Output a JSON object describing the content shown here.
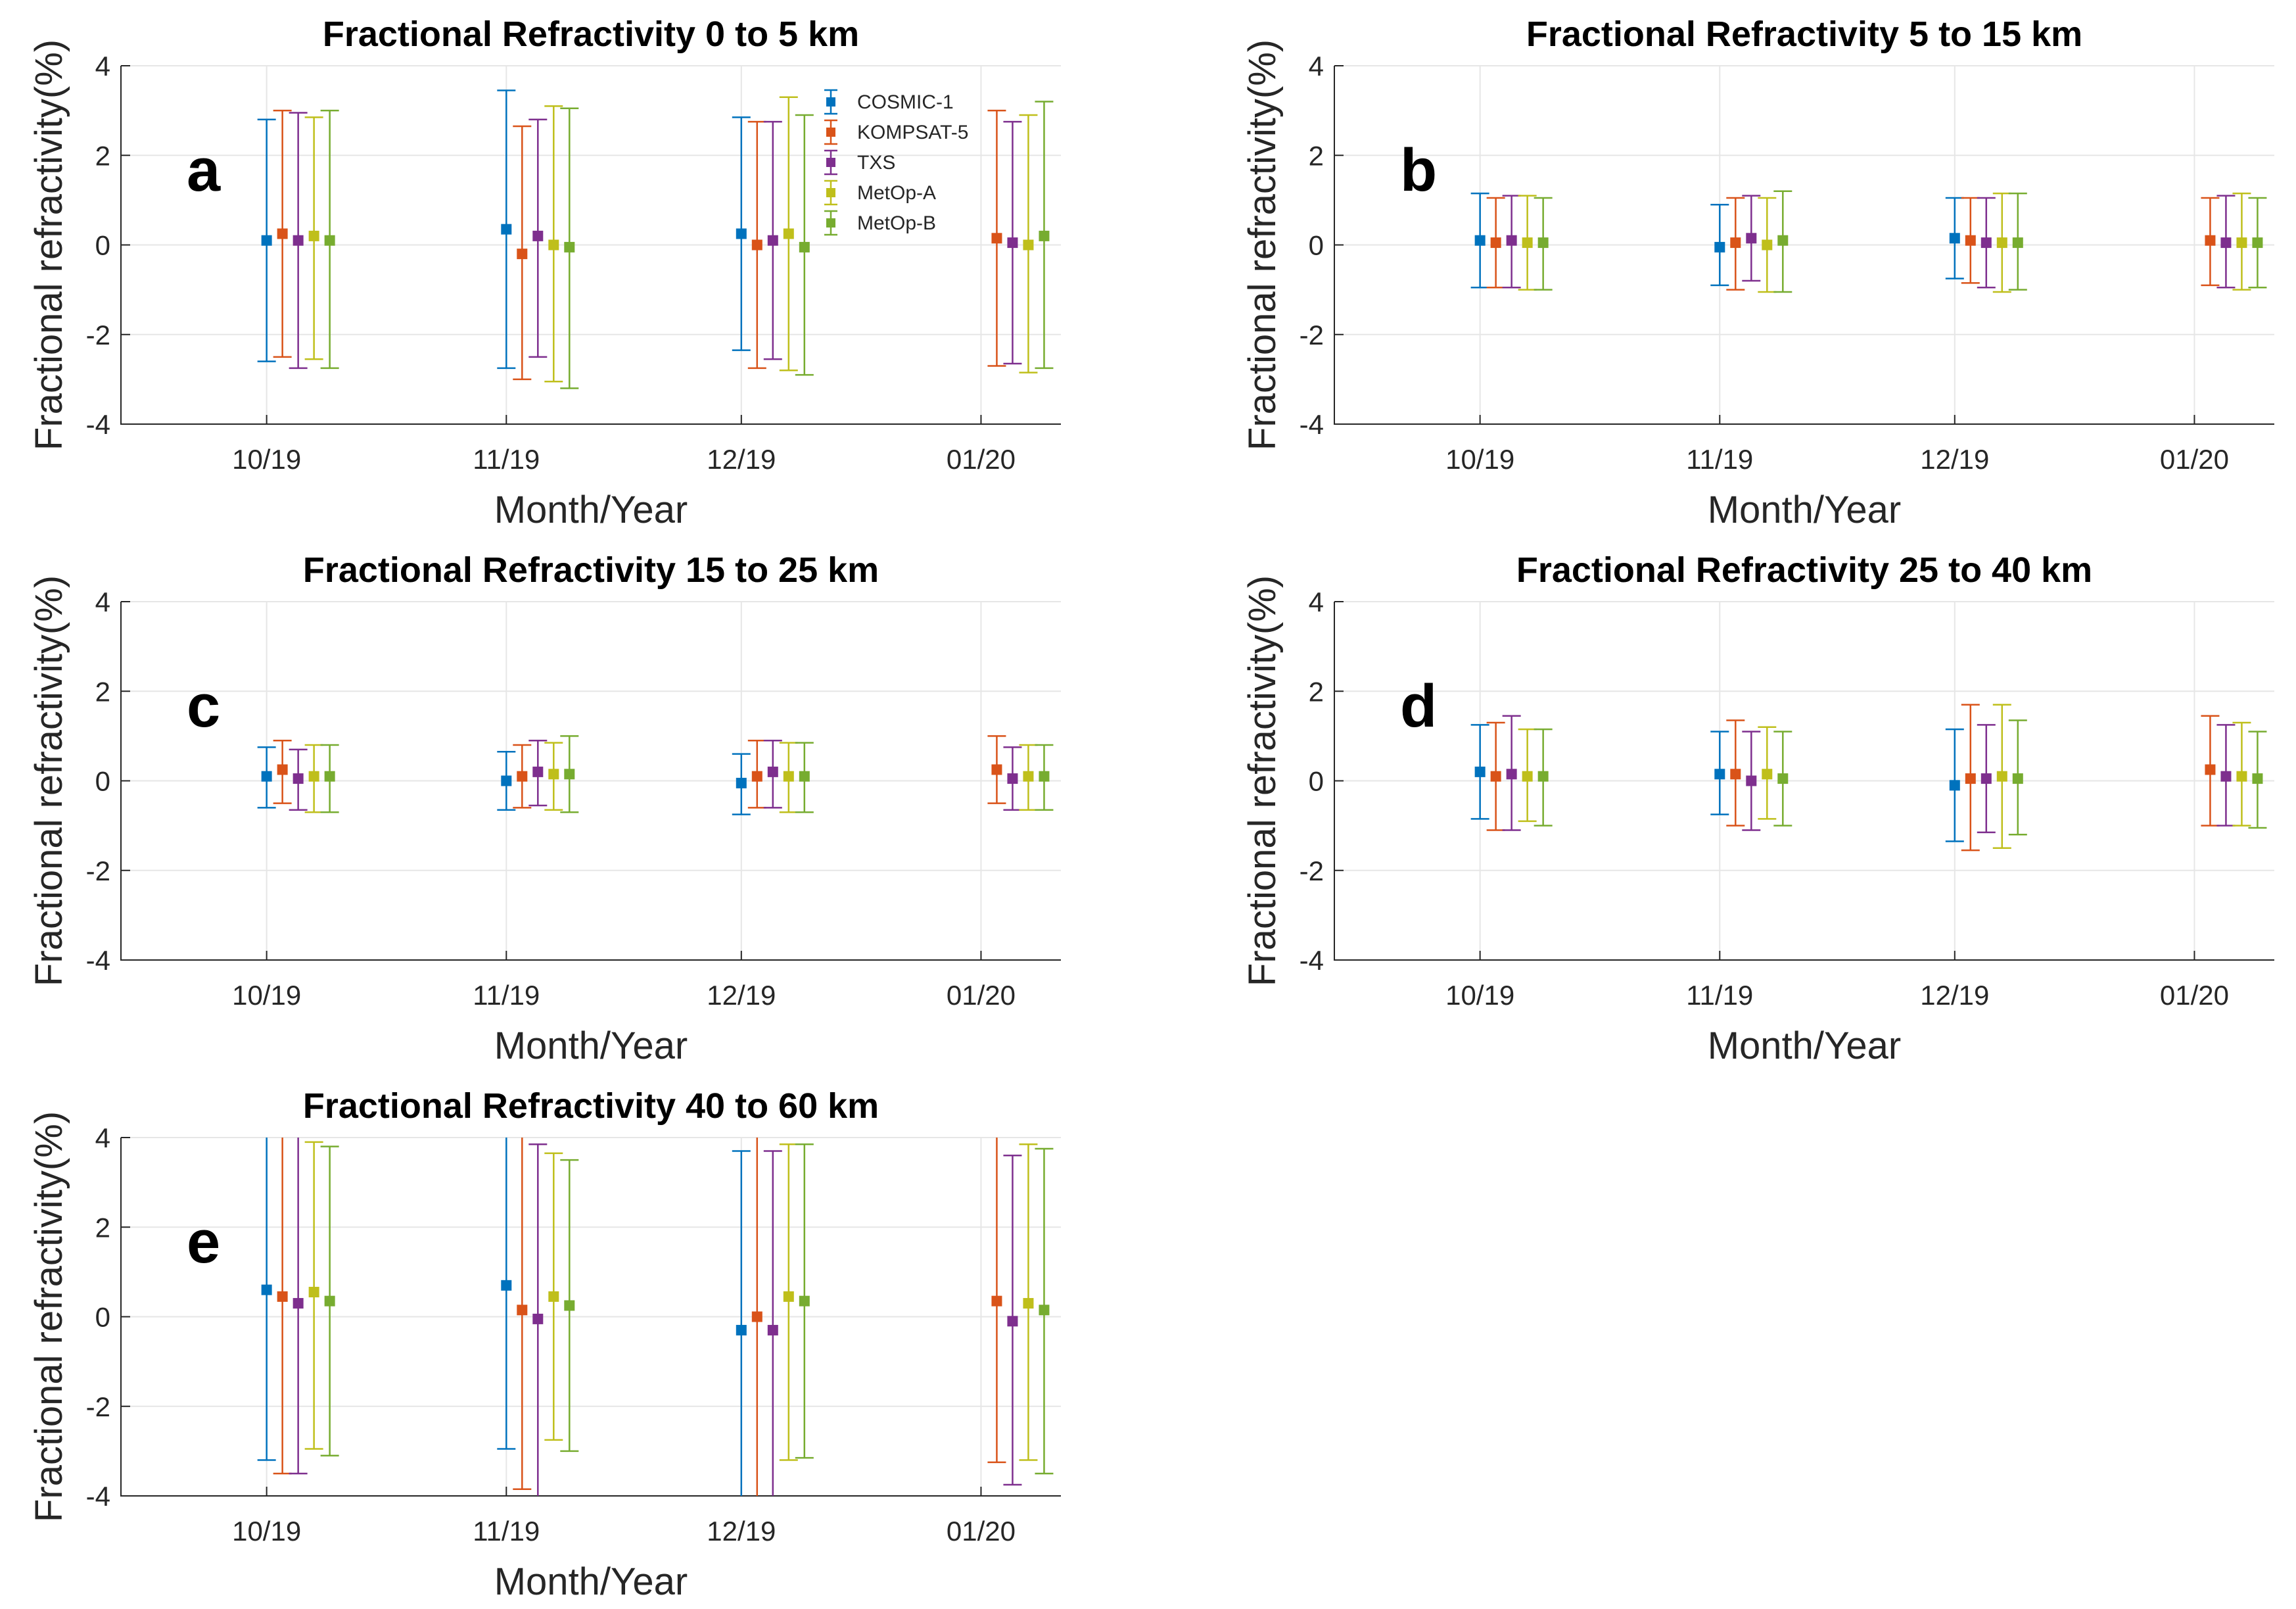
{
  "chart_data": {
    "type": "errorbar",
    "colors": {
      "COSMIC-1": "#0072BD",
      "KOMPSAT-5": "#D95319",
      "TXS": "#7E2F8E",
      "MetOp-A": "#BFBF1B",
      "MetOp-B": "#77AC30"
    },
    "legend": {
      "position": "inside top-right of panel a",
      "entries": [
        "COSMIC-1",
        "KOMPSAT-5",
        "TXS",
        "MetOp-A",
        "MetOp-B"
      ]
    },
    "categories": [
      "10/19",
      "11/19",
      "12/19",
      "01/20"
    ],
    "ylim": [
      -4,
      4
    ],
    "yticks": [
      "4",
      "2",
      "0",
      "-2",
      "-4"
    ],
    "panels": [
      {
        "letter": "a",
        "title": "Fractional Refractivity 0 to 5 km",
        "xlabel": "Month/Year",
        "ylabel": "Fractional refractivity(%)",
        "series": [
          {
            "name": "COSMIC-1",
            "mean": [
              0.1,
              0.35,
              0.25,
              null
            ],
            "low": [
              -2.6,
              -2.75,
              -2.35,
              null
            ],
            "high": [
              2.8,
              3.45,
              2.85,
              null
            ]
          },
          {
            "name": "KOMPSAT-5",
            "mean": [
              0.25,
              -0.2,
              0.0,
              0.15
            ],
            "low": [
              -2.5,
              -3.0,
              -2.75,
              -2.7
            ],
            "high": [
              3.0,
              2.65,
              2.75,
              3.0
            ]
          },
          {
            "name": "TXS",
            "mean": [
              0.1,
              0.2,
              0.1,
              0.05
            ],
            "low": [
              -2.75,
              -2.5,
              -2.55,
              -2.65
            ],
            "high": [
              2.95,
              2.8,
              2.75,
              2.75
            ]
          },
          {
            "name": "MetOp-A",
            "mean": [
              0.2,
              0.0,
              0.25,
              0.0
            ],
            "low": [
              -2.55,
              -3.05,
              -2.8,
              -2.85
            ],
            "high": [
              2.85,
              3.1,
              3.3,
              2.9
            ]
          },
          {
            "name": "MetOp-B",
            "mean": [
              0.1,
              -0.05,
              -0.05,
              0.2
            ],
            "low": [
              -2.75,
              -3.2,
              -2.9,
              -2.75
            ],
            "high": [
              3.0,
              3.05,
              2.9,
              3.2
            ]
          }
        ]
      },
      {
        "letter": "b",
        "title": "Fractional Refractivity 5 to 15 km",
        "xlabel": "Month/Year",
        "ylabel": "Fractional refractivity(%)",
        "series": [
          {
            "name": "COSMIC-1",
            "mean": [
              0.1,
              -0.05,
              0.15,
              null
            ],
            "low": [
              -0.95,
              -0.9,
              -0.75,
              null
            ],
            "high": [
              1.15,
              0.9,
              1.05,
              null
            ]
          },
          {
            "name": "KOMPSAT-5",
            "mean": [
              0.05,
              0.05,
              0.1,
              0.1
            ],
            "low": [
              -0.95,
              -1.0,
              -0.85,
              -0.9
            ],
            "high": [
              1.05,
              1.05,
              1.05,
              1.05
            ]
          },
          {
            "name": "TXS",
            "mean": [
              0.1,
              0.15,
              0.05,
              0.05
            ],
            "low": [
              -0.95,
              -0.8,
              -0.95,
              -0.95
            ],
            "high": [
              1.1,
              1.1,
              1.05,
              1.1
            ]
          },
          {
            "name": "MetOp-A",
            "mean": [
              0.05,
              -0.0,
              0.05,
              0.05
            ],
            "low": [
              -1.0,
              -1.05,
              -1.05,
              -1.0
            ],
            "high": [
              1.1,
              1.05,
              1.15,
              1.15
            ]
          },
          {
            "name": "MetOp-B",
            "mean": [
              0.05,
              0.1,
              0.05,
              0.05
            ],
            "low": [
              -1.0,
              -1.05,
              -1.0,
              -0.95
            ],
            "high": [
              1.05,
              1.2,
              1.15,
              1.05
            ]
          }
        ]
      },
      {
        "letter": "c",
        "title": "Fractional Refractivity 15 to 25 km",
        "xlabel": "Month/Year",
        "ylabel": "Fractional refractivity(%)",
        "series": [
          {
            "name": "COSMIC-1",
            "mean": [
              0.1,
              0.0,
              -0.05,
              null
            ],
            "low": [
              -0.6,
              -0.65,
              -0.75,
              null
            ],
            "high": [
              0.75,
              0.65,
              0.6,
              null
            ]
          },
          {
            "name": "KOMPSAT-5",
            "mean": [
              0.25,
              0.1,
              0.1,
              0.25
            ],
            "low": [
              -0.5,
              -0.6,
              -0.6,
              -0.5
            ],
            "high": [
              0.9,
              0.8,
              0.9,
              1.0
            ]
          },
          {
            "name": "TXS",
            "mean": [
              0.05,
              0.2,
              0.2,
              0.05
            ],
            "low": [
              -0.65,
              -0.55,
              -0.6,
              -0.65
            ],
            "high": [
              0.7,
              0.9,
              0.9,
              0.75
            ]
          },
          {
            "name": "MetOp-A",
            "mean": [
              0.1,
              0.15,
              0.1,
              0.1
            ],
            "low": [
              -0.7,
              -0.65,
              -0.7,
              -0.65
            ],
            "high": [
              0.8,
              0.85,
              0.85,
              0.8
            ]
          },
          {
            "name": "MetOp-B",
            "mean": [
              0.1,
              0.15,
              0.1,
              0.1
            ],
            "low": [
              -0.7,
              -0.7,
              -0.7,
              -0.65
            ],
            "high": [
              0.8,
              1.0,
              0.85,
              0.8
            ]
          }
        ]
      },
      {
        "letter": "d",
        "title": "Fractional Refractivity 25 to 40 km",
        "xlabel": "Month/Year",
        "ylabel": "Fractional refractivity(%)",
        "series": [
          {
            "name": "COSMIC-1",
            "mean": [
              0.2,
              0.15,
              -0.1,
              null
            ],
            "low": [
              -0.85,
              -0.75,
              -1.35,
              null
            ],
            "high": [
              1.25,
              1.1,
              1.15,
              null
            ]
          },
          {
            "name": "KOMPSAT-5",
            "mean": [
              0.1,
              0.15,
              0.05,
              0.25
            ],
            "low": [
              -1.1,
              -1.0,
              -1.55,
              -1.0
            ],
            "high": [
              1.3,
              1.35,
              1.7,
              1.45
            ]
          },
          {
            "name": "TXS",
            "mean": [
              0.15,
              0.0,
              0.05,
              0.1
            ],
            "low": [
              -1.1,
              -1.1,
              -1.15,
              -1.0
            ],
            "high": [
              1.45,
              1.1,
              1.25,
              1.25
            ]
          },
          {
            "name": "MetOp-A",
            "mean": [
              0.1,
              0.15,
              0.1,
              0.1
            ],
            "low": [
              -0.9,
              -0.85,
              -1.5,
              -1.0
            ],
            "high": [
              1.15,
              1.2,
              1.7,
              1.3
            ]
          },
          {
            "name": "MetOp-B",
            "mean": [
              0.1,
              0.05,
              0.05,
              0.05
            ],
            "low": [
              -1.0,
              -1.0,
              -1.2,
              -1.05
            ],
            "high": [
              1.15,
              1.1,
              1.35,
              1.1
            ]
          }
        ]
      },
      {
        "letter": "e",
        "title": "Fractional Refractivity 40 to 60 km",
        "xlabel": "Month/Year",
        "ylabel": "Fractional refractivity(%)",
        "series": [
          {
            "name": "COSMIC-1",
            "mean": [
              0.6,
              0.7,
              -0.3,
              null
            ],
            "low": [
              -3.2,
              -2.95,
              -4.0,
              null
            ],
            "high": [
              4.0,
              4.0,
              3.7,
              null
            ]
          },
          {
            "name": "KOMPSAT-5",
            "mean": [
              0.45,
              0.15,
              0.0,
              0.35
            ],
            "low": [
              -3.5,
              -3.85,
              -4.0,
              -3.25
            ],
            "high": [
              4.0,
              4.0,
              4.0,
              4.0
            ]
          },
          {
            "name": "TXS",
            "mean": [
              0.3,
              -0.05,
              -0.3,
              -0.1
            ],
            "low": [
              -3.5,
              -4.0,
              -4.0,
              -3.75
            ],
            "high": [
              4.0,
              3.85,
              3.7,
              3.6
            ]
          },
          {
            "name": "MetOp-A",
            "mean": [
              0.55,
              0.45,
              0.45,
              0.3
            ],
            "low": [
              -2.95,
              -2.75,
              -3.2,
              -3.2
            ],
            "high": [
              3.9,
              3.65,
              3.85,
              3.85
            ]
          },
          {
            "name": "MetOp-B",
            "mean": [
              0.35,
              0.25,
              0.35,
              0.15
            ],
            "low": [
              -3.1,
              -3.0,
              -3.15,
              -3.5
            ],
            "high": [
              3.8,
              3.5,
              3.85,
              3.75
            ]
          }
        ]
      }
    ]
  }
}
